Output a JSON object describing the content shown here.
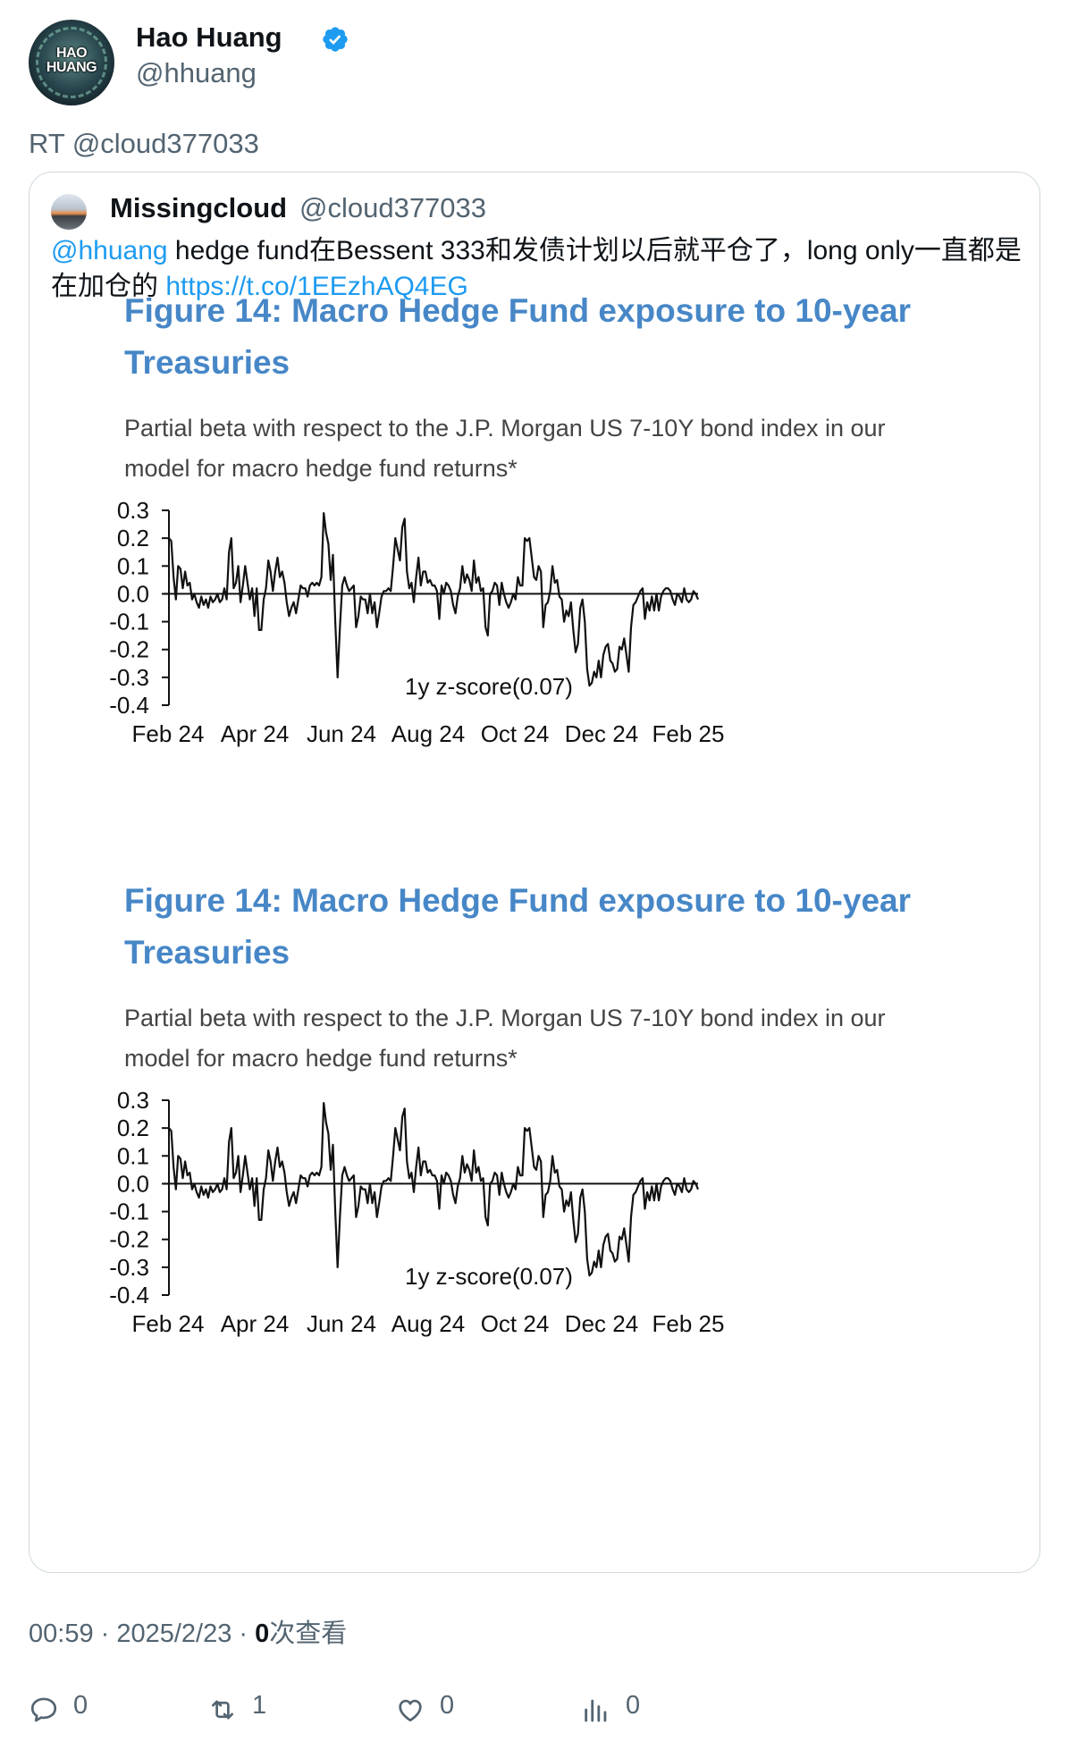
{
  "post": {
    "author": {
      "name": "Hao Huang",
      "handle": "@hhuang",
      "avatar_text_line1": "HAO",
      "avatar_text_line2": "HUANG"
    },
    "retweet_label": "RT @cloud377033",
    "timestamp": "00:59 · 2025/2/23 · ",
    "views_count": "0",
    "views_label": "次查看",
    "actions": {
      "replies": "0",
      "retweets": "1",
      "likes": "0",
      "views": "0"
    },
    "icons": [
      "verified-badge-icon",
      "reply-icon",
      "retweet-icon",
      "like-icon",
      "views-icon"
    ],
    "accent_color": "#1d9bf0"
  },
  "quote": {
    "author": {
      "name": "Missingcloud",
      "handle": "@cloud377033"
    },
    "mention": "@hhuang",
    "text": " hedge fund在Bessent 333和发债计划以后就平仓了，long only一直都是在加仓的 ",
    "link": "https://t.co/1EEzhAQ4EG"
  },
  "figures": [
    {
      "title": "Figure 14: Macro Hedge Fund exposure to 10-year Treasuries",
      "subtitle": "Partial beta with respect to the J.P. Morgan US 7-10Y bond index in our model for macro hedge fund returns*",
      "title_color": "#4787c7"
    },
    {
      "title": "Figure 14: Macro Hedge Fund exposure to 10-year Treasuries",
      "subtitle": "Partial beta with respect to the J.P. Morgan US 7-10Y bond index in our model for macro hedge fund returns*",
      "title_color": "#4787c7"
    }
  ],
  "chart_data": [
    {
      "type": "line",
      "title": "Figure 14: Macro Hedge Fund exposure to 10-year Treasuries",
      "subtitle": "Partial beta with respect to the J.P. Morgan US 7-10Y bond index in our model for macro hedge fund returns*",
      "x_ticks": [
        "Feb 24",
        "Apr 24",
        "Jun 24",
        "Aug 24",
        "Oct 24",
        "Dec 24",
        "Feb 25"
      ],
      "y_ticks": [
        "0.3",
        "0.2",
        "0.1",
        "0.0",
        "-0.1",
        "-0.2",
        "-0.3",
        "-0.4"
      ],
      "ylim": [
        -0.4,
        0.3
      ],
      "annotation": {
        "label": "1y z-score:",
        "value": "(0.07)"
      },
      "grid": false,
      "series": [
        {
          "values": [
            0.2,
            0.19,
            0.06,
            -0.02,
            0.1,
            0.09,
            0.02,
            0.08,
            0.03,
            0.04,
            -0.02,
            0,
            -0.03,
            -0.05,
            -0.01,
            -0.04,
            -0.02,
            -0.05,
            -0.01,
            -0.03,
            -0.02,
            0,
            -0.03,
            -0.02,
            0.02,
            -0.02,
            0.15,
            0.2,
            0.02,
            0.04,
            0.1,
            -0.03,
            0.03,
            0.1,
            0.04,
            -0.02,
            0.02,
            -0.08,
            0.02,
            -0.13,
            -0.13,
            -0.02,
            0.02,
            0.12,
            0.08,
            0.01,
            0.08,
            0.13,
            0.06,
            0.08,
            0.04,
            -0.03,
            -0.08,
            -0.05,
            -0.03,
            -0.07,
            -0.02,
            0.03,
            0.02,
            0.02,
            -0.01,
            0.03,
            0.04,
            0.03,
            0.04,
            0.03,
            0.06,
            0.29,
            0.22,
            0.18,
            0.05,
            0.14,
            -0.1,
            -0.3,
            -0.12,
            0.03,
            0.06,
            0.03,
            0.01,
            0.02,
            0.03,
            -0.12,
            -0.08,
            -0.01,
            -0.02,
            -0.02,
            -0.07,
            0,
            -0.07,
            -0.03,
            -0.12,
            -0.07,
            -0.01,
            0.01,
            0.01,
            0.02,
            0.01,
            0.1,
            0.2,
            0.16,
            0.12,
            0.24,
            0.27,
            0.08,
            0.02,
            0.04,
            -0.03,
            0.06,
            0.13,
            0.03,
            0.08,
            0.08,
            0.04,
            0.05,
            0.03,
            0.03,
            0.01,
            -0.09,
            0.03,
            0,
            0.04,
            0.03,
            0.01,
            -0.04,
            -0.07,
            -0.01,
            0.02,
            0.1,
            0.04,
            0.07,
            0.05,
            0.01,
            0.12,
            0.04,
            0.06,
            0.01,
            0.02,
            -0.12,
            -0.15,
            0,
            0.01,
            0.04,
            0.03,
            -0.04,
            0.04,
            0,
            -0.03,
            -0.05,
            -0.03,
            0,
            -0.02,
            0.06,
            0.03,
            0.03,
            0.2,
            0.19,
            0.2,
            0.13,
            0.06,
            0.05,
            0.1,
            0.08,
            -0.12,
            -0.04,
            -0.03,
            0.01,
            0.1,
            0.04,
            0.05,
            -0.01,
            -0.02,
            -0.1,
            -0.06,
            -0.08,
            -0.03,
            -0.13,
            -0.21,
            -0.18,
            -0.05,
            -0.02,
            -0.1,
            -0.27,
            -0.33,
            -0.32,
            -0.28,
            -0.3,
            -0.24,
            -0.3,
            -0.22,
            -0.19,
            -0.18,
            -0.24,
            -0.25,
            -0.28,
            -0.27,
            -0.19,
            -0.2,
            -0.16,
            -0.22,
            -0.28,
            -0.12,
            -0.04,
            -0.03,
            -0.01,
            0.01,
            0.02,
            -0.09,
            -0.03,
            -0.06,
            -0.01,
            -0.06,
            0,
            -0.06,
            -0.01,
            0.01,
            0.02,
            0.02,
            0.01,
            -0.02,
            -0.04,
            0,
            -0.01,
            -0.03,
            0.02,
            -0.02,
            -0.03,
            -0.02,
            0.01,
            0,
            -0.02
          ]
        }
      ]
    },
    {
      "type": "line",
      "title": "Figure 14: Macro Hedge Fund exposure to 10-year Treasuries",
      "subtitle": "Partial beta with respect to the J.P. Morgan US 7-10Y bond index in our model for macro hedge fund returns*",
      "x_ticks": [
        "Feb 24",
        "Apr 24",
        "Jun 24",
        "Aug 24",
        "Oct 24",
        "Dec 24",
        "Feb 25"
      ],
      "y_ticks": [
        "0.3",
        "0.2",
        "0.1",
        "0.0",
        "-0.1",
        "-0.2",
        "-0.3",
        "-0.4"
      ],
      "ylim": [
        -0.4,
        0.3
      ],
      "annotation": {
        "label": "1y z-score:",
        "value": "(0.07)"
      },
      "grid": false,
      "series": [
        {
          "values": [
            0.2,
            0.19,
            0.06,
            -0.02,
            0.1,
            0.09,
            0.02,
            0.08,
            0.03,
            0.04,
            -0.02,
            0,
            -0.03,
            -0.05,
            -0.01,
            -0.04,
            -0.02,
            -0.05,
            -0.01,
            -0.03,
            -0.02,
            0,
            -0.03,
            -0.02,
            0.02,
            -0.02,
            0.15,
            0.2,
            0.02,
            0.04,
            0.1,
            -0.03,
            0.03,
            0.1,
            0.04,
            -0.02,
            0.02,
            -0.08,
            0.02,
            -0.13,
            -0.13,
            -0.02,
            0.02,
            0.12,
            0.08,
            0.01,
            0.08,
            0.13,
            0.06,
            0.08,
            0.04,
            -0.03,
            -0.08,
            -0.05,
            -0.03,
            -0.07,
            -0.02,
            0.03,
            0.02,
            0.02,
            -0.01,
            0.03,
            0.04,
            0.03,
            0.04,
            0.03,
            0.06,
            0.29,
            0.22,
            0.18,
            0.05,
            0.14,
            -0.1,
            -0.3,
            -0.12,
            0.03,
            0.06,
            0.03,
            0.01,
            0.02,
            0.03,
            -0.12,
            -0.08,
            -0.01,
            -0.02,
            -0.02,
            -0.07,
            0,
            -0.07,
            -0.03,
            -0.12,
            -0.07,
            -0.01,
            0.01,
            0.01,
            0.02,
            0.01,
            0.1,
            0.2,
            0.16,
            0.12,
            0.24,
            0.27,
            0.08,
            0.02,
            0.04,
            -0.03,
            0.06,
            0.13,
            0.03,
            0.08,
            0.08,
            0.04,
            0.05,
            0.03,
            0.03,
            0.01,
            -0.09,
            0.03,
            0,
            0.04,
            0.03,
            0.01,
            -0.04,
            -0.07,
            -0.01,
            0.02,
            0.1,
            0.04,
            0.07,
            0.05,
            0.01,
            0.12,
            0.04,
            0.06,
            0.01,
            0.02,
            -0.12,
            -0.15,
            0,
            0.01,
            0.04,
            0.03,
            -0.04,
            0.04,
            0,
            -0.03,
            -0.05,
            -0.03,
            0,
            -0.02,
            0.06,
            0.03,
            0.03,
            0.2,
            0.19,
            0.2,
            0.13,
            0.06,
            0.05,
            0.1,
            0.08,
            -0.12,
            -0.04,
            -0.03,
            0.01,
            0.1,
            0.04,
            0.05,
            -0.01,
            -0.02,
            -0.1,
            -0.06,
            -0.08,
            -0.03,
            -0.13,
            -0.21,
            -0.18,
            -0.05,
            -0.02,
            -0.1,
            -0.27,
            -0.33,
            -0.32,
            -0.28,
            -0.3,
            -0.24,
            -0.3,
            -0.22,
            -0.19,
            -0.18,
            -0.24,
            -0.25,
            -0.28,
            -0.27,
            -0.19,
            -0.2,
            -0.16,
            -0.22,
            -0.28,
            -0.12,
            -0.04,
            -0.03,
            -0.01,
            0.01,
            0.02,
            -0.09,
            -0.03,
            -0.06,
            -0.01,
            -0.06,
            0,
            -0.06,
            -0.01,
            0.01,
            0.02,
            0.02,
            0.01,
            -0.02,
            -0.04,
            0,
            -0.01,
            -0.03,
            0.02,
            -0.02,
            -0.03,
            -0.02,
            0.01,
            0,
            -0.02
          ]
        }
      ]
    }
  ]
}
